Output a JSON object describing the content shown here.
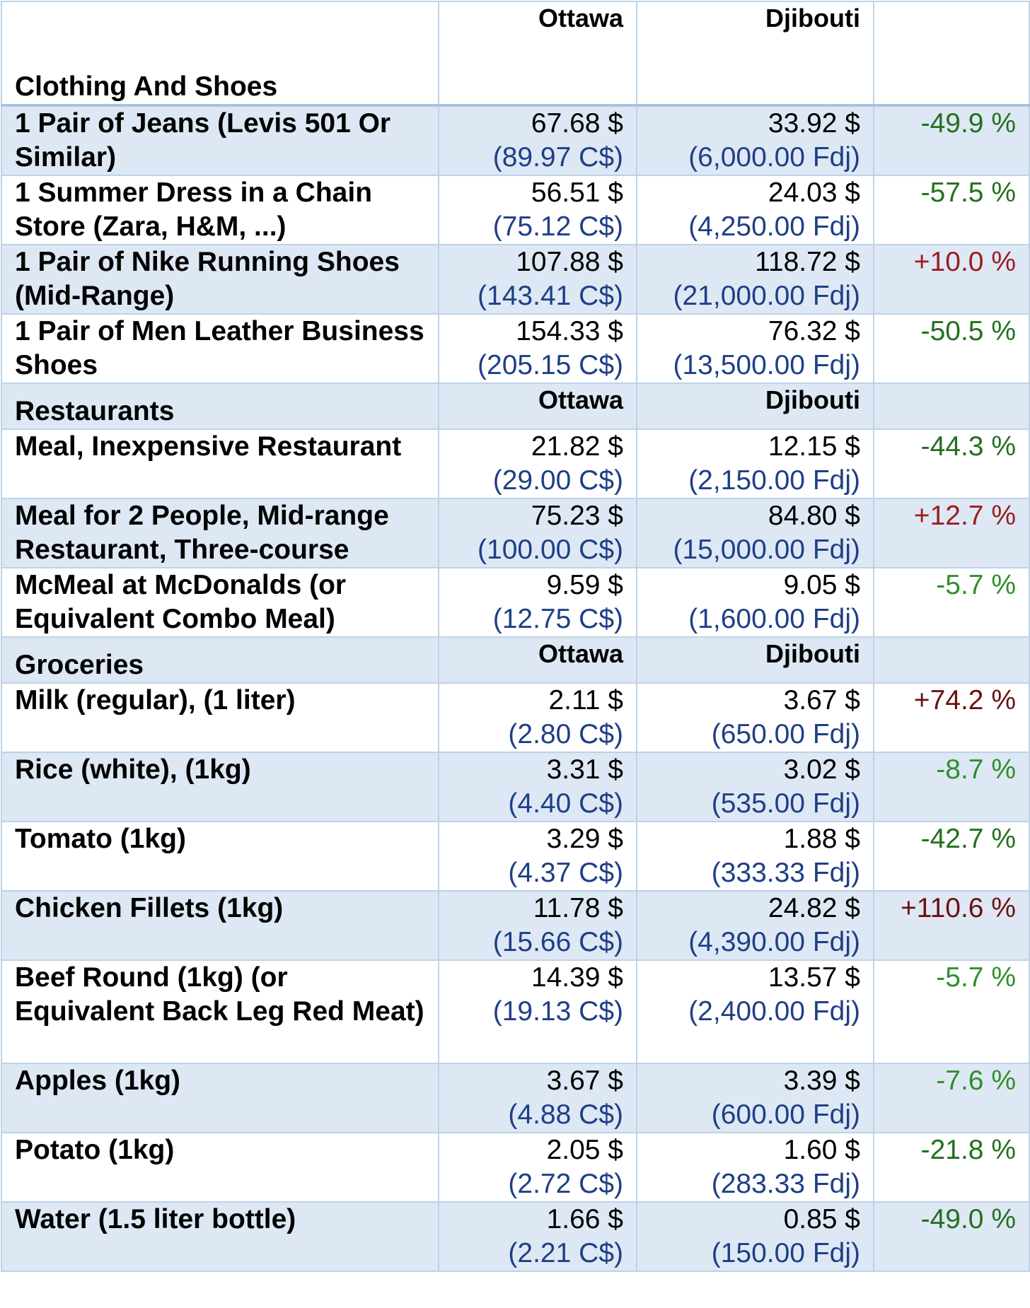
{
  "table": {
    "clothing": {
      "section_label": "Clothing And Shoes",
      "col_a": "Ottawa",
      "col_b": "Djibouti",
      "rows": [
        {
          "item": "1 Pair of Jeans (Levis 501 Or Similar)",
          "a_usd": "67.68 $",
          "a_local": "(89.97 C$)",
          "b_usd": "33.92 $",
          "b_local": "(6,000.00 Fdj)",
          "diff": "-49.9 %"
        },
        {
          "item": "1 Summer Dress in a Chain Store (Zara, H&M, ...)",
          "a_usd": "56.51 $",
          "a_local": "(75.12 C$)",
          "b_usd": "24.03 $",
          "b_local": "(4,250.00 Fdj)",
          "diff": "-57.5 %"
        },
        {
          "item": "1 Pair of Nike Running Shoes (Mid-Range)",
          "a_usd": "107.88 $",
          "a_local": "(143.41 C$)",
          "b_usd": "118.72 $",
          "b_local": "(21,000.00 Fdj)",
          "diff": "+10.0 %"
        },
        {
          "item": "1 Pair of Men Leather Business Shoes",
          "a_usd": "154.33 $",
          "a_local": "(205.15 C$)",
          "b_usd": "76.32 $",
          "b_local": "(13,500.00 Fdj)",
          "diff": "-50.5 %"
        }
      ]
    },
    "restaurants": {
      "section_label": "Restaurants",
      "col_a": "Ottawa",
      "col_b": "Djibouti",
      "rows": [
        {
          "item": "Meal, Inexpensive Restaurant",
          "a_usd": "21.82 $",
          "a_local": "(29.00 C$)",
          "b_usd": "12.15 $",
          "b_local": "(2,150.00 Fdj)",
          "diff": "-44.3 %"
        },
        {
          "item": "Meal for 2 People, Mid-range Restaurant, Three-course",
          "a_usd": "75.23 $",
          "a_local": "(100.00 C$)",
          "b_usd": "84.80 $",
          "b_local": "(15,000.00 Fdj)",
          "diff": "+12.7 %"
        },
        {
          "item": "McMeal at McDonalds (or Equivalent Combo Meal)",
          "a_usd": "9.59 $",
          "a_local": "(12.75 C$)",
          "b_usd": "9.05 $",
          "b_local": "(1,600.00 Fdj)",
          "diff": "-5.7 %"
        }
      ]
    },
    "groceries": {
      "section_label": "Groceries",
      "col_a": "Ottawa",
      "col_b": "Djibouti",
      "rows": [
        {
          "item": "Milk (regular), (1 liter)",
          "a_usd": "2.11 $",
          "a_local": "(2.80 C$)",
          "b_usd": "3.67 $",
          "b_local": "(650.00 Fdj)",
          "diff": "+74.2 %"
        },
        {
          "item": "Rice (white), (1kg)",
          "a_usd": "3.31 $",
          "a_local": "(4.40 C$)",
          "b_usd": "3.02 $",
          "b_local": "(535.00 Fdj)",
          "diff": "-8.7 %"
        },
        {
          "item": "Tomato (1kg)",
          "a_usd": "3.29 $",
          "a_local": "(4.37 C$)",
          "b_usd": "1.88 $",
          "b_local": "(333.33 Fdj)",
          "diff": "-42.7 %"
        },
        {
          "item": "Chicken Fillets (1kg)",
          "a_usd": "11.78 $",
          "a_local": "(15.66 C$)",
          "b_usd": "24.82 $",
          "b_local": "(4,390.00 Fdj)",
          "diff": "+110.6 %"
        },
        {
          "item": "Beef Round (1kg) (or Equivalent Back Leg Red Meat)",
          "a_usd": "14.39 $",
          "a_local": "(19.13 C$)",
          "b_usd": "13.57 $",
          "b_local": "(2,400.00 Fdj)",
          "diff": "-5.7 %"
        },
        {
          "item": "Apples (1kg)",
          "a_usd": "3.67 $",
          "a_local": "(4.88 C$)",
          "b_usd": "3.39 $",
          "b_local": "(600.00 Fdj)",
          "diff": "-7.6 %"
        },
        {
          "item": "Potato (1kg)",
          "a_usd": "2.05 $",
          "a_local": "(2.72 C$)",
          "b_usd": "1.60 $",
          "b_local": "(283.33 Fdj)",
          "diff": "-21.8 %"
        },
        {
          "item": "Water (1.5 liter bottle)",
          "a_usd": "1.66 $",
          "a_local": "(2.21 C$)",
          "b_usd": "0.85 $",
          "b_local": "(150.00 Fdj)",
          "diff": "-49.0 %"
        }
      ]
    }
  },
  "colors": {
    "negative_diff": "#23701f",
    "positive_diff": "#9b1c1c",
    "local_currency": "#1f3f86",
    "row_band": "#dde8f4",
    "grid": "#bcd3e8"
  }
}
